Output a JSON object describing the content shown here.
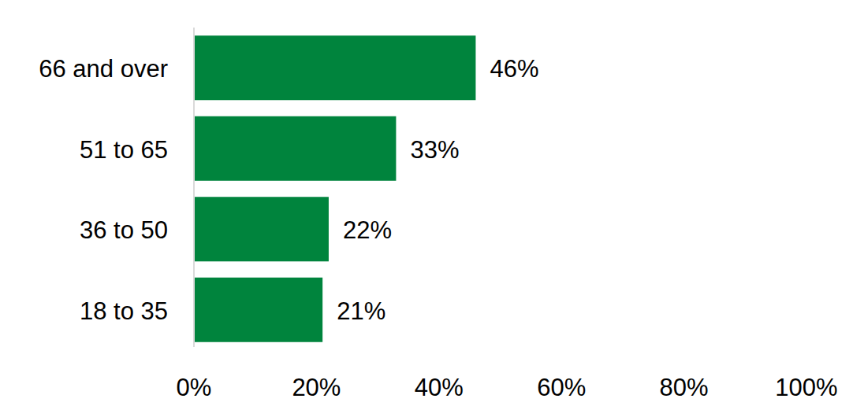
{
  "chart_data": {
    "type": "bar",
    "orientation": "horizontal",
    "categories": [
      "66 and over",
      "51 to 65",
      "36 to 50",
      "18 to 35"
    ],
    "values": [
      46,
      33,
      22,
      21
    ],
    "value_labels": [
      "46%",
      "33%",
      "22%",
      "21%"
    ],
    "color": "#00843d",
    "xlim": [
      0,
      100
    ],
    "xticks": [
      {
        "value": 0,
        "label": "0%"
      },
      {
        "value": 20,
        "label": "20%"
      },
      {
        "value": 40,
        "label": "40%"
      },
      {
        "value": 60,
        "label": "60%"
      },
      {
        "value": 80,
        "label": "80%"
      },
      {
        "value": 100,
        "label": "100%"
      }
    ],
    "grid": false,
    "data_labels": true
  }
}
